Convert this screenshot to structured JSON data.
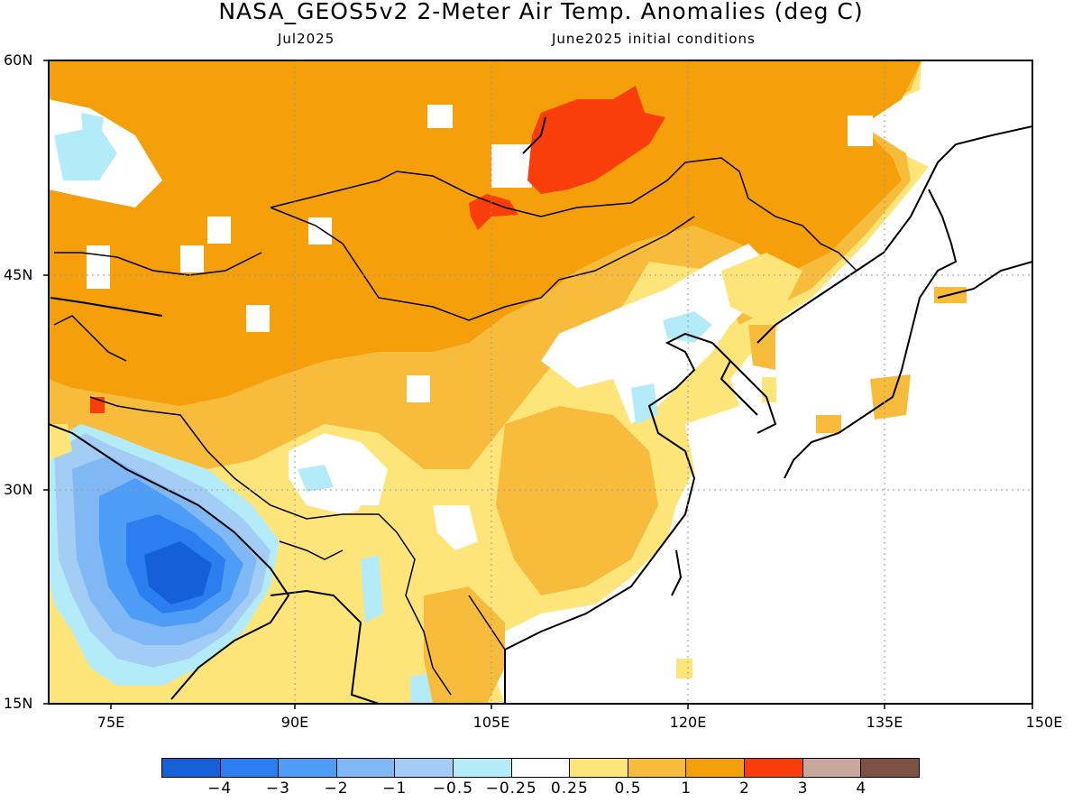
{
  "title": "NASA_GEOS5v2 2-Meter Air Temp. Anomalies (deg C)",
  "subtitle_left": "Jul2025",
  "subtitle_right": "June2025 initial conditions",
  "lat_labels": [
    "60N",
    "45N",
    "30N",
    "15N"
  ],
  "lon_labels": [
    "75E",
    "90E",
    "105E",
    "120E",
    "135E",
    "150E"
  ],
  "colorbar": {
    "colors": [
      "#1560d8",
      "#2a7ef0",
      "#4d9cf5",
      "#7fb8f5",
      "#a4cdf5",
      "#b3ecf8",
      "#ffffff",
      "#fde57a",
      "#f8bc3c",
      "#f59f0a",
      "#f93d0b",
      "#c8a79d",
      "#7b5243"
    ],
    "labels": [
      "-4",
      "-3",
      "-2",
      "-1",
      "-0.5",
      "-0.25",
      "0.25",
      "0.5",
      "1",
      "2",
      "3",
      "4"
    ]
  }
}
